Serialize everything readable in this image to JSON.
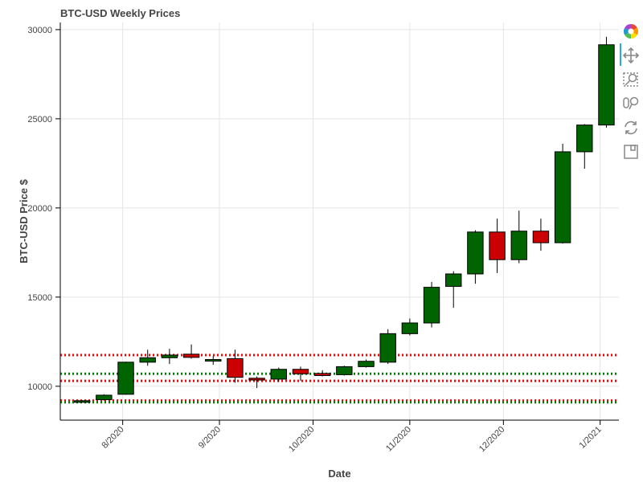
{
  "chart_data": {
    "type": "candlestick",
    "title": "BTC-USD Weekly Prices",
    "xlabel": "Date",
    "ylabel": "BTC-USD Price $",
    "x_range": [
      "2020-07-12",
      "2021-01-07"
    ],
    "ylim": [
      8100,
      30400
    ],
    "y_ticks": [
      10000,
      15000,
      20000,
      25000,
      30000
    ],
    "y_tick_labels": [
      "10000",
      "15000",
      "20000",
      "25000",
      "30000"
    ],
    "x_ticks": [
      "2020-08-01",
      "2020-09-01",
      "2020-10-01",
      "2020-11-01",
      "2020-12-01",
      "2021-01-01"
    ],
    "x_tick_labels": [
      "8/2020",
      "9/2020",
      "10/2020",
      "11/2020",
      "12/2020",
      "1/2021"
    ],
    "grid": true,
    "colors": {
      "up": "#006400",
      "down": "#cc0000",
      "level_green": "#008000",
      "level_red": "#ff0000"
    },
    "candles": [
      {
        "date": "2020-07-19",
        "open": 9180,
        "high": 9220,
        "low": 9150,
        "close": 9190
      },
      {
        "date": "2020-07-26",
        "open": 9250,
        "high": 9550,
        "low": 9200,
        "close": 9500
      },
      {
        "date": "2020-08-02",
        "open": 9550,
        "high": 11380,
        "low": 9520,
        "close": 11350
      },
      {
        "date": "2020-08-09",
        "open": 11350,
        "high": 12050,
        "low": 11150,
        "close": 11600
      },
      {
        "date": "2020-08-16",
        "open": 11600,
        "high": 12100,
        "low": 11250,
        "close": 11750
      },
      {
        "date": "2020-08-23",
        "open": 11800,
        "high": 12350,
        "low": 11550,
        "close": 11620
      },
      {
        "date": "2020-08-30",
        "open": 11450,
        "high": 11700,
        "low": 11200,
        "close": 11500
      },
      {
        "date": "2020-09-06",
        "open": 11550,
        "high": 12050,
        "low": 10200,
        "close": 10500
      },
      {
        "date": "2020-09-13",
        "open": 10450,
        "high": 10550,
        "low": 9900,
        "close": 10350
      },
      {
        "date": "2020-09-20",
        "open": 10400,
        "high": 11050,
        "low": 10250,
        "close": 10950
      },
      {
        "date": "2020-09-27",
        "open": 10950,
        "high": 11100,
        "low": 10300,
        "close": 10700
      },
      {
        "date": "2020-10-04",
        "open": 10720,
        "high": 10900,
        "low": 10550,
        "close": 10600
      },
      {
        "date": "2020-10-11",
        "open": 10650,
        "high": 11150,
        "low": 10600,
        "close": 11100
      },
      {
        "date": "2020-10-18",
        "open": 11100,
        "high": 11500,
        "low": 11050,
        "close": 11400
      },
      {
        "date": "2020-10-25",
        "open": 11350,
        "high": 13200,
        "low": 11250,
        "close": 12950
      },
      {
        "date": "2020-11-01",
        "open": 12950,
        "high": 13800,
        "low": 12850,
        "close": 13550
      },
      {
        "date": "2020-11-08",
        "open": 13550,
        "high": 15850,
        "low": 13300,
        "close": 15550
      },
      {
        "date": "2020-11-15",
        "open": 15600,
        "high": 16450,
        "low": 14400,
        "close": 16300
      },
      {
        "date": "2020-11-22",
        "open": 16300,
        "high": 18750,
        "low": 15750,
        "close": 18650
      },
      {
        "date": "2020-11-29",
        "open": 18650,
        "high": 19400,
        "low": 16350,
        "close": 17100
      },
      {
        "date": "2020-12-06",
        "open": 17100,
        "high": 19850,
        "low": 16900,
        "close": 18700
      },
      {
        "date": "2020-12-13",
        "open": 18700,
        "high": 19400,
        "low": 17600,
        "close": 18050
      },
      {
        "date": "2020-12-20",
        "open": 18050,
        "high": 23600,
        "low": 18000,
        "close": 23150
      },
      {
        "date": "2020-12-27",
        "open": 23150,
        "high": 24700,
        "low": 22200,
        "close": 24650
      },
      {
        "date": "2021-01-03",
        "open": 24650,
        "high": 29600,
        "low": 24500,
        "close": 29150
      }
    ],
    "levels": [
      {
        "value": 11750,
        "color": "red"
      },
      {
        "value": 10700,
        "color": "green"
      },
      {
        "value": 10300,
        "color": "red"
      },
      {
        "value": 9200,
        "color": "red"
      },
      {
        "value": 9100,
        "color": "green"
      }
    ]
  },
  "toolbar": {
    "tools": [
      "bokeh-logo-icon",
      "pan-icon",
      "box-zoom-icon",
      "wheel-zoom-icon",
      "reset-icon",
      "save-icon"
    ]
  }
}
